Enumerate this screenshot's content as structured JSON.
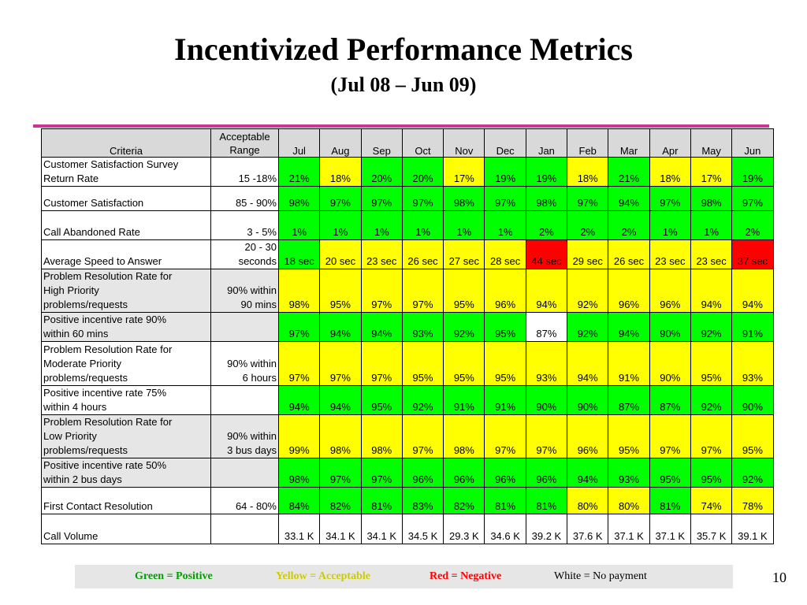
{
  "title": "Incentivized Performance Metrics",
  "subtitle": "(Jul 08 – Jun 09)",
  "table": {
    "header": {
      "criteria": "Criteria",
      "range_line1": "Acceptable",
      "range_line2": "Range",
      "months": [
        "Jul",
        "Aug",
        "Sep",
        "Oct",
        "Nov",
        "Dec",
        "Jan",
        "Feb",
        "Mar",
        "Apr",
        "May",
        "Jun"
      ]
    },
    "rows": [
      {
        "criteria": [
          "Customer Satisfaction Survey",
          "Return Rate"
        ],
        "range": [
          "15 -18%"
        ],
        "shaded": false,
        "sep": false,
        "values": [
          "21%",
          "18%",
          "20%",
          "20%",
          "17%",
          "19%",
          "19%",
          "18%",
          "21%",
          "18%",
          "17%",
          "19%"
        ],
        "status": [
          "g",
          "y",
          "g",
          "g",
          "y",
          "g",
          "g",
          "y",
          "g",
          "y",
          "y",
          "g"
        ]
      },
      {
        "criteria": [
          "Customer Satisfaction"
        ],
        "range": [
          "85 - 90%"
        ],
        "shaded": false,
        "sep": false,
        "values": [
          "98%",
          "97%",
          "97%",
          "97%",
          "98%",
          "97%",
          "98%",
          "97%",
          "94%",
          "97%",
          "98%",
          "97%"
        ],
        "status": [
          "g",
          "g",
          "g",
          "g",
          "g",
          "g",
          "g",
          "g",
          "g",
          "g",
          "g",
          "g"
        ]
      },
      {
        "criteria": [
          "Call Abandoned Rate"
        ],
        "range": [
          "3 - 5%"
        ],
        "shaded": false,
        "sep": false,
        "values": [
          "1%",
          "1%",
          "1%",
          "1%",
          "1%",
          "1%",
          "2%",
          "2%",
          "2%",
          "1%",
          "1%",
          "2%"
        ],
        "status": [
          "g",
          "g",
          "g",
          "g",
          "g",
          "g",
          "g",
          "g",
          "g",
          "g",
          "g",
          "g"
        ]
      },
      {
        "criteria": [
          "Average Speed to Answer"
        ],
        "range": [
          "20 - 30",
          "seconds"
        ],
        "shaded": false,
        "sep": false,
        "values": [
          "18 sec",
          "20 sec",
          "23 sec",
          "26 sec",
          "27 sec",
          "28 sec",
          "44 sec",
          "29 sec",
          "26 sec",
          "23 sec",
          "23 sec",
          "37 sec"
        ],
        "status": [
          "g",
          "y",
          "y",
          "y",
          "y",
          "y",
          "r",
          "y",
          "y",
          "y",
          "y",
          "r"
        ]
      },
      {
        "criteria": [
          "Problem Resolution Rate for",
          "High Priority",
          "problems/requests"
        ],
        "range": [
          "90% within",
          "90 mins"
        ],
        "shaded": true,
        "sep": true,
        "values": [
          "98%",
          "95%",
          "97%",
          "97%",
          "95%",
          "96%",
          "94%",
          "92%",
          "96%",
          "96%",
          "94%",
          "94%"
        ],
        "status": [
          "y",
          "y",
          "y",
          "y",
          "y",
          "y",
          "y",
          "y",
          "y",
          "y",
          "y",
          "y"
        ]
      },
      {
        "criteria": [
          "Positive incentive rate 90%",
          "within 60 mins"
        ],
        "range": [],
        "shaded": true,
        "sep": false,
        "values": [
          "97%",
          "94%",
          "94%",
          "93%",
          "92%",
          "95%",
          "87%",
          "92%",
          "94%",
          "90%",
          "92%",
          "91%"
        ],
        "status": [
          "g",
          "g",
          "g",
          "g",
          "g",
          "g",
          "w",
          "g",
          "g",
          "g",
          "g",
          "g"
        ]
      },
      {
        "criteria": [
          "Problem Resolution Rate for",
          "Moderate Priority",
          "problems/requests"
        ],
        "range": [
          "90% within",
          "6 hours"
        ],
        "shaded": false,
        "sep": true,
        "values": [
          "97%",
          "97%",
          "97%",
          "95%",
          "95%",
          "95%",
          "93%",
          "94%",
          "91%",
          "90%",
          "95%",
          "93%"
        ],
        "status": [
          "y",
          "y",
          "y",
          "y",
          "y",
          "y",
          "y",
          "y",
          "y",
          "y",
          "y",
          "y"
        ]
      },
      {
        "criteria": [
          "Positive incentive rate 75%",
          "within 4 hours"
        ],
        "range": [],
        "shaded": false,
        "sep": false,
        "values": [
          "94%",
          "94%",
          "95%",
          "92%",
          "91%",
          "91%",
          "90%",
          "90%",
          "87%",
          "87%",
          "92%",
          "90%"
        ],
        "status": [
          "g",
          "g",
          "g",
          "g",
          "g",
          "g",
          "g",
          "g",
          "g",
          "g",
          "g",
          "g"
        ]
      },
      {
        "criteria": [
          "Problem Resolution Rate for",
          "Low Priority",
          "problems/requests"
        ],
        "range": [
          "90% within",
          "3 bus days"
        ],
        "shaded": true,
        "sep": true,
        "values": [
          "99%",
          "98%",
          "98%",
          "97%",
          "98%",
          "97%",
          "97%",
          "96%",
          "95%",
          "97%",
          "97%",
          "95%"
        ],
        "status": [
          "y",
          "y",
          "y",
          "y",
          "y",
          "y",
          "y",
          "y",
          "y",
          "y",
          "y",
          "y"
        ]
      },
      {
        "criteria": [
          "Positive incentive rate 50%",
          "within 2 bus days"
        ],
        "range": [],
        "shaded": true,
        "sep": false,
        "values": [
          "98%",
          "97%",
          "97%",
          "96%",
          "96%",
          "96%",
          "96%",
          "94%",
          "93%",
          "95%",
          "95%",
          "92%"
        ],
        "status": [
          "g",
          "g",
          "g",
          "g",
          "g",
          "g",
          "g",
          "g",
          "g",
          "g",
          "g",
          "g"
        ]
      },
      {
        "criteria": [
          "First Contact Resolution"
        ],
        "range": [
          "64 - 80%"
        ],
        "shaded": false,
        "sep": true,
        "values": [
          "84%",
          "82%",
          "81%",
          "83%",
          "82%",
          "81%",
          "81%",
          "80%",
          "80%",
          "81%",
          "74%",
          "78%"
        ],
        "status": [
          "g",
          "g",
          "g",
          "g",
          "g",
          "g",
          "g",
          "y",
          "y",
          "g",
          "y",
          "y"
        ]
      },
      {
        "criteria": [
          "Call Volume"
        ],
        "range": [],
        "shaded": false,
        "sep": false,
        "values": [
          "33.1 K",
          "34.1 K",
          "34.1 K",
          "34.5 K",
          "29.3 K",
          "34.6 K",
          "39.2 K",
          "37.6 K",
          "37.1 K",
          "37.1 K",
          "35.7 K",
          "39.1 K"
        ],
        "status": [
          "w",
          "w",
          "w",
          "w",
          "w",
          "w",
          "w",
          "w",
          "w",
          "w",
          "w",
          "w"
        ]
      }
    ]
  },
  "legend": {
    "green": "Green = Positive",
    "yellow": "Yellow = Acceptable",
    "red": "Red = Negative",
    "white": "White = No payment"
  },
  "colors": {
    "g": "#00ff00",
    "y": "#ffff00",
    "r": "#ff0000",
    "w": "#ffffff",
    "title_rule": "#cc3399"
  },
  "page_number": "10"
}
